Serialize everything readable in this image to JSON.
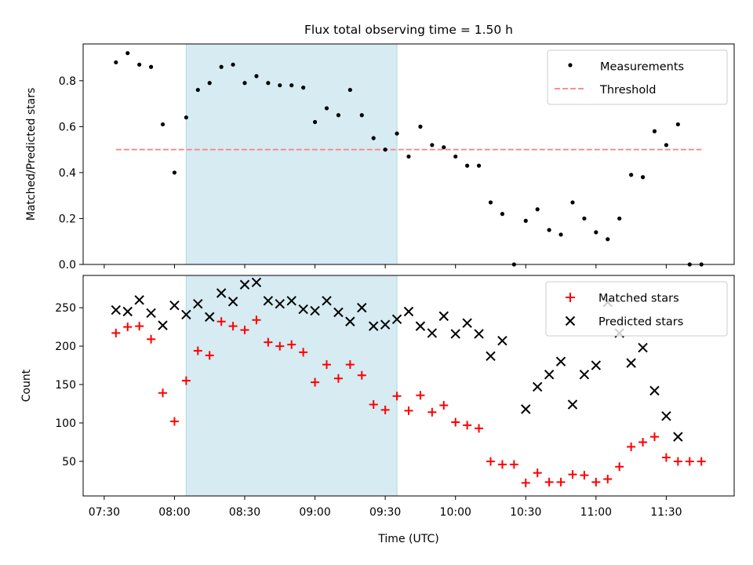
{
  "figure": {
    "title": "Flux total observing time = 1.50 h"
  },
  "chart_data": [
    {
      "type": "scatter",
      "panel": "top",
      "title": "Flux total observing time = 1.50 h",
      "xlabel": "",
      "ylabel": "Matched/Predicted stars",
      "ylim": [
        0,
        0.96
      ],
      "yticks": [
        0.0,
        0.2,
        0.4,
        0.6,
        0.8
      ],
      "ytick_labels": [
        "0.0",
        "0.2",
        "0.4",
        "0.6",
        "0.8"
      ],
      "legend_position": "top-right",
      "shaded_interval": {
        "start": "08:05",
        "end": "09:35",
        "color": "#add8e6"
      },
      "threshold": {
        "name": "Threshold",
        "value": 0.5,
        "x_start": "07:35",
        "x_end": "11:45",
        "color": "#ff7f7f",
        "style": "dashed"
      },
      "series": [
        {
          "name": "Measurements",
          "marker": "point",
          "color": "#000000",
          "x": [
            "07:35",
            "07:40",
            "07:45",
            "07:50",
            "07:55",
            "08:00",
            "08:05",
            "08:10",
            "08:15",
            "08:20",
            "08:25",
            "08:30",
            "08:35",
            "08:40",
            "08:45",
            "08:50",
            "08:55",
            "09:00",
            "09:05",
            "09:10",
            "09:15",
            "09:20",
            "09:25",
            "09:30",
            "09:35",
            "09:40",
            "09:45",
            "09:50",
            "09:55",
            "10:00",
            "10:05",
            "10:10",
            "10:15",
            "10:20",
            "10:25",
            "10:30",
            "10:35",
            "10:40",
            "10:45",
            "10:50",
            "10:55",
            "11:00",
            "11:05",
            "11:10",
            "11:15",
            "11:20",
            "11:25",
            "11:30",
            "11:35",
            "11:40",
            "11:45"
          ],
          "y": [
            0.88,
            0.92,
            0.87,
            0.86,
            0.61,
            0.4,
            0.64,
            0.76,
            0.79,
            0.86,
            0.87,
            0.79,
            0.82,
            0.79,
            0.78,
            0.78,
            0.77,
            0.62,
            0.68,
            0.65,
            0.76,
            0.65,
            0.55,
            0.5,
            0.57,
            0.47,
            0.6,
            0.52,
            0.51,
            0.47,
            0.43,
            0.43,
            0.27,
            0.22,
            0.0,
            0.19,
            0.24,
            0.15,
            0.13,
            0.27,
            0.2,
            0.14,
            0.11,
            0.2,
            0.39,
            0.38,
            0.58,
            0.52,
            0.61,
            0.0,
            0.0
          ]
        }
      ]
    },
    {
      "type": "scatter",
      "panel": "bottom",
      "xlabel": "Time (UTC)",
      "ylabel": "Count",
      "ylim": [
        5,
        292
      ],
      "yticks": [
        50,
        100,
        150,
        200,
        250
      ],
      "ytick_labels": [
        "50",
        "100",
        "150",
        "200",
        "250"
      ],
      "xticks": [
        "07:30",
        "08:00",
        "08:30",
        "09:00",
        "09:30",
        "10:00",
        "10:30",
        "11:00",
        "11:30"
      ],
      "xlim": [
        "07:21",
        "11:59"
      ],
      "legend_position": "top-right",
      "shaded_interval": {
        "start": "08:05",
        "end": "09:35",
        "color": "#add8e6"
      },
      "series": [
        {
          "name": "Matched stars",
          "marker": "plus",
          "color": "#ff0000",
          "x": [
            "07:35",
            "07:40",
            "07:45",
            "07:50",
            "07:55",
            "08:00",
            "08:05",
            "08:10",
            "08:15",
            "08:20",
            "08:25",
            "08:30",
            "08:35",
            "08:40",
            "08:45",
            "08:50",
            "08:55",
            "09:00",
            "09:05",
            "09:10",
            "09:15",
            "09:20",
            "09:25",
            "09:30",
            "09:35",
            "09:40",
            "09:45",
            "09:50",
            "09:55",
            "10:00",
            "10:05",
            "10:10",
            "10:15",
            "10:20",
            "10:25",
            "10:30",
            "10:35",
            "10:40",
            "10:45",
            "10:50",
            "10:55",
            "11:00",
            "11:05",
            "11:10",
            "11:15",
            "11:20",
            "11:25",
            "11:30",
            "11:35",
            "11:40",
            "11:45"
          ],
          "y": [
            217,
            225,
            226,
            209,
            139,
            102,
            155,
            194,
            188,
            232,
            226,
            221,
            234,
            205,
            200,
            202,
            192,
            153,
            176,
            158,
            176,
            162,
            124,
            117,
            135,
            116,
            136,
            114,
            123,
            101,
            97,
            93,
            50,
            46,
            46,
            22,
            35,
            23,
            23,
            33,
            32,
            23,
            27,
            43,
            69,
            75,
            82,
            55,
            50,
            50,
            50
          ]
        },
        {
          "name": "Predicted stars",
          "marker": "x",
          "color": "#000000",
          "x": [
            "07:35",
            "07:40",
            "07:45",
            "07:50",
            "07:55",
            "08:00",
            "08:05",
            "08:10",
            "08:15",
            "08:20",
            "08:25",
            "08:30",
            "08:35",
            "08:40",
            "08:45",
            "08:50",
            "08:55",
            "09:00",
            "09:05",
            "09:10",
            "09:15",
            "09:20",
            "09:25",
            "09:30",
            "09:35",
            "09:40",
            "09:45",
            "09:50",
            "09:55",
            "10:00",
            "10:05",
            "10:10",
            "10:15",
            "10:20",
            "10:30",
            "10:35",
            "10:40",
            "10:45",
            "10:50",
            "10:55",
            "11:00",
            "11:05",
            "11:10",
            "11:15",
            "11:20",
            "11:25",
            "11:30",
            "11:35"
          ],
          "y": [
            247,
            245,
            260,
            243,
            227,
            253,
            241,
            255,
            238,
            269,
            258,
            280,
            283,
            259,
            255,
            259,
            248,
            246,
            259,
            244,
            232,
            250,
            226,
            228,
            235,
            245,
            226,
            217,
            239,
            216,
            230,
            216,
            187,
            207,
            118,
            147,
            163,
            180,
            124,
            163,
            175,
            257,
            217,
            178,
            198,
            142,
            109,
            82
          ]
        }
      ]
    }
  ]
}
